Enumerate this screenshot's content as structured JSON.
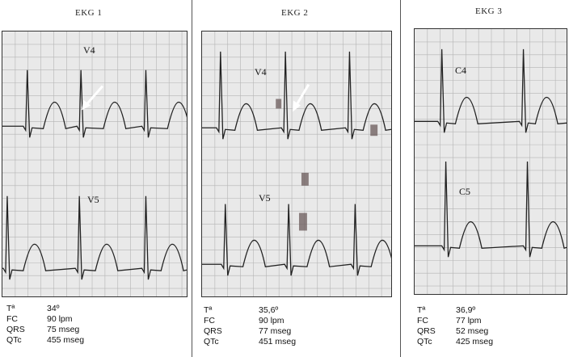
{
  "panels": [
    {
      "title": "EKG 1",
      "leads": [
        "V4",
        "V5"
      ],
      "measurements": [
        {
          "label": "Tª",
          "value": "34º"
        },
        {
          "label": "FC",
          "value": "90 lpm"
        },
        {
          "label": "QRS",
          "value": "75 mseg"
        },
        {
          "label": "QTc",
          "value": "455 mseg"
        }
      ]
    },
    {
      "title": "EKG 2",
      "leads": [
        "V4",
        "V5"
      ],
      "measurements": [
        {
          "label": "Tª",
          "value": "35,6º"
        },
        {
          "label": "FC",
          "value": "90 lpm"
        },
        {
          "label": "QRS",
          "value": "77 mseg"
        },
        {
          "label": "QTc",
          "value": "451 mseg"
        }
      ]
    },
    {
      "title": "EKG 3",
      "leads": [
        "C4",
        "C5"
      ],
      "measurements": [
        {
          "label": "Tª",
          "value": "36,9º"
        },
        {
          "label": "FC",
          "value": "77 lpm"
        },
        {
          "label": "QRS",
          "value": "52 mseg"
        },
        {
          "label": "QTc",
          "value": "425 mseg"
        }
      ]
    }
  ],
  "colors": {
    "paper": "#e9e9e9",
    "grid": "#b4b4b4",
    "trace": "#222222",
    "arrow": "#ffffff"
  }
}
